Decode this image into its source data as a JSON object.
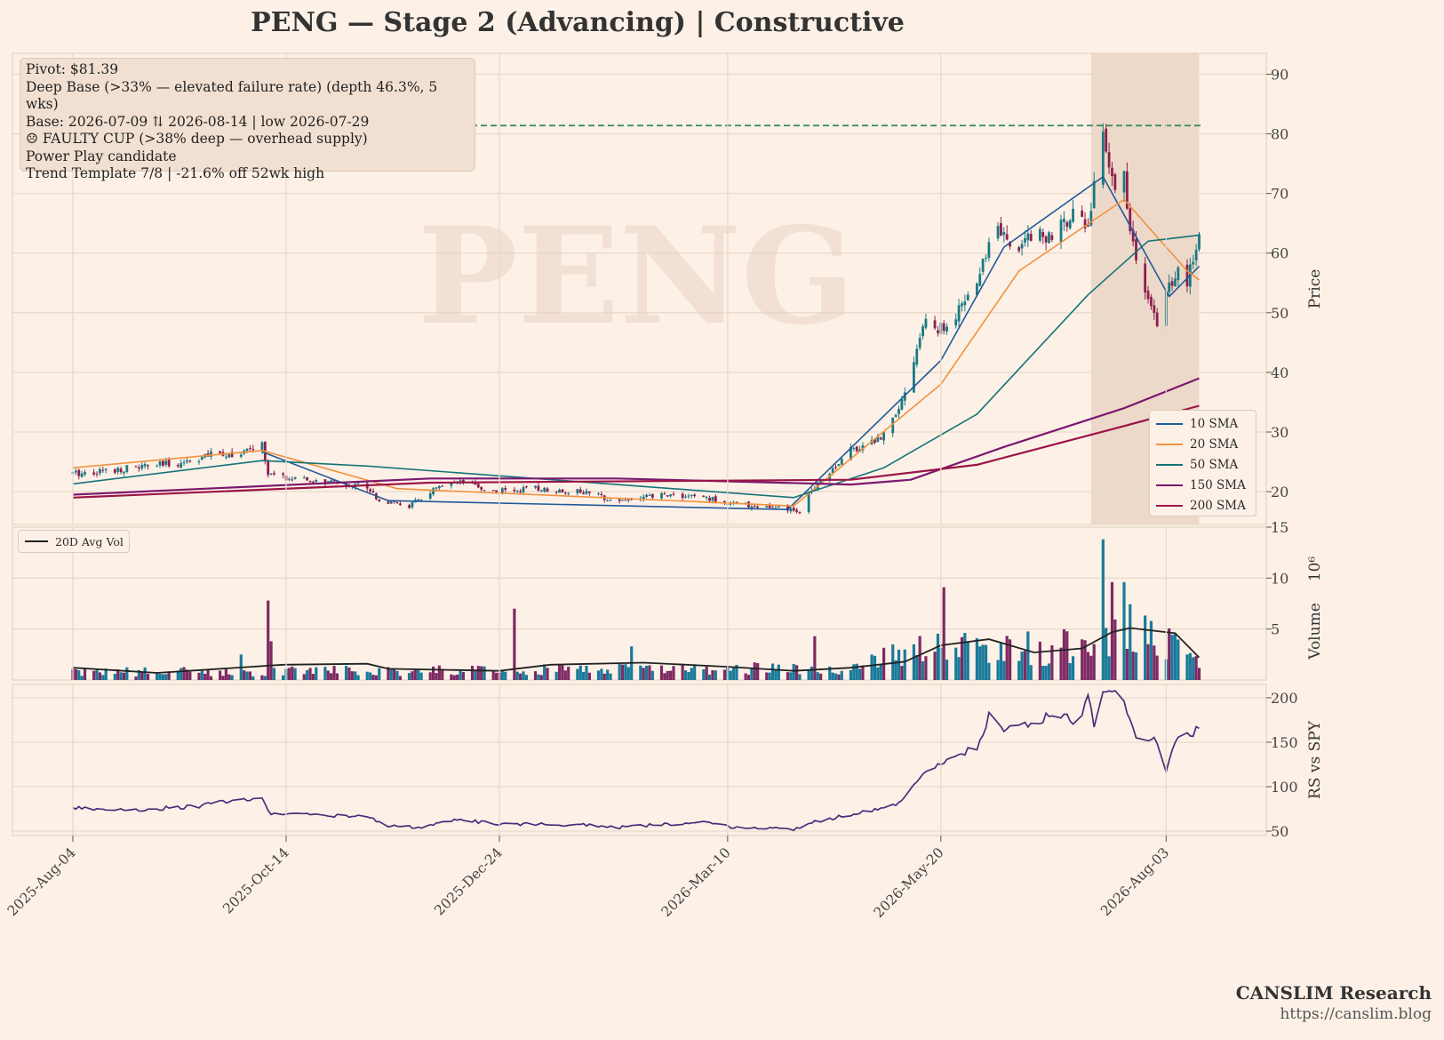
{
  "title": "PENG  —  Stage 2 (Advancing)  |  Constructive",
  "watermark": "PENG",
  "info_lines": [
    "Pivot: $81.39",
    "Deep Base (>33% — elevated failure rate)  (depth 46.3%, 5 wks)",
    "Base: 2026-07-09 ⇅ 2026-08-14  |  low 2026-07-29",
    "☹ FAULTY CUP (>38% deep — overhead supply)",
    "Power Play candidate",
    "Trend Template 7/8  |  -21.6% off 52wk high"
  ],
  "brand": {
    "name": "CANSLIM Research",
    "url": "https://canslim.blog"
  },
  "colors": {
    "bg": "#fdf1e7",
    "grid": "#e8d9cb",
    "up": "#1a7a82",
    "down": "#8e1e4c",
    "sma10": "#1f5a99",
    "sma20": "#f2913d",
    "sma50": "#157378",
    "sma150": "#7b1870",
    "sma200": "#9b1447",
    "pivot": "#2e8b57",
    "avgvol": "#222222",
    "rs": "#4a2c7a",
    "vol_up": "#1a7a9a",
    "vol_down": "#7e2a63",
    "band": "#e9d3c2"
  },
  "chart_data": [
    {
      "type": "candlestick",
      "panel": "price",
      "ylabel": "Price",
      "ylim": [
        14.5,
        93.5
      ],
      "yticks": [
        20,
        30,
        40,
        50,
        60,
        70,
        80,
        90
      ],
      "x_start": "2025-08-04",
      "x_end": "2026-08-14",
      "xticks": [
        "2025-Aug-04",
        "2025-Oct-14",
        "2025-Dec-24",
        "2026-Mar-10",
        "2026-May-20",
        "2026-Aug-03"
      ],
      "pivot": 81.39,
      "base_band": [
        "2026-07-09",
        "2026-08-14"
      ],
      "close_anchors": [
        [
          "2025-08-04",
          23.0
        ],
        [
          "2025-08-20",
          23.8
        ],
        [
          "2025-09-08",
          24.8
        ],
        [
          "2025-09-22",
          26.5
        ],
        [
          "2025-09-29",
          26.2
        ],
        [
          "2025-10-06",
          28.0
        ],
        [
          "2025-10-08",
          22.8
        ],
        [
          "2025-10-20",
          21.8
        ],
        [
          "2025-11-10",
          21.0
        ],
        [
          "2025-11-14",
          18.5
        ],
        [
          "2025-11-24",
          17.6
        ],
        [
          "2025-12-03",
          20.5
        ],
        [
          "2025-12-12",
          21.5
        ],
        [
          "2025-12-22",
          20.0
        ],
        [
          "2026-01-05",
          20.5
        ],
        [
          "2026-01-20",
          20.0
        ],
        [
          "2026-02-02",
          18.5
        ],
        [
          "2026-02-18",
          19.5
        ],
        [
          "2026-03-02",
          19.0
        ],
        [
          "2026-03-12",
          18.0
        ],
        [
          "2026-03-30",
          17.0
        ],
        [
          "2026-04-03",
          16.5
        ],
        [
          "2026-04-07",
          20.5
        ],
        [
          "2026-04-20",
          27.0
        ],
        [
          "2026-04-30",
          29.0
        ],
        [
          "2026-05-08",
          36.5
        ],
        [
          "2026-05-14",
          48.0
        ],
        [
          "2026-05-22",
          47.0
        ],
        [
          "2026-06-01",
          55.0
        ],
        [
          "2026-06-08",
          66.0
        ],
        [
          "2026-06-12",
          60.0
        ],
        [
          "2026-06-20",
          64.0
        ],
        [
          "2026-06-27",
          62.0
        ],
        [
          "2026-07-03",
          68.0
        ],
        [
          "2026-07-08",
          64.0
        ],
        [
          "2026-07-12",
          81.0
        ],
        [
          "2026-07-16",
          72.0
        ],
        [
          "2026-07-20",
          73.0
        ],
        [
          "2026-07-22",
          63.0
        ],
        [
          "2026-07-28",
          52.0
        ],
        [
          "2026-08-01",
          46.0
        ],
        [
          "2026-08-03",
          53.0
        ],
        [
          "2026-08-06",
          57.0
        ],
        [
          "2026-08-10",
          55.0
        ],
        [
          "2026-08-14",
          63.0
        ]
      ],
      "sma_series": [
        {
          "name": "10 SMA",
          "points": [
            [
              "2025-10-06",
              26.7
            ],
            [
              "2025-11-17",
              18.5
            ],
            [
              "2026-03-30",
              17.0
            ],
            [
              "2026-05-20",
              42.0
            ],
            [
              "2026-06-10",
              61.0
            ],
            [
              "2026-07-13",
              72.8
            ],
            [
              "2026-08-04",
              52.7
            ],
            [
              "2026-08-14",
              57.8
            ]
          ]
        },
        {
          "name": "20 SMA",
          "points": [
            [
              "2025-08-04",
              24.0
            ],
            [
              "2025-10-06",
              26.9
            ],
            [
              "2025-11-20",
              20.5
            ],
            [
              "2026-04-01",
              17.6
            ],
            [
              "2026-05-20",
              38.0
            ],
            [
              "2026-06-15",
              57.0
            ],
            [
              "2026-07-20",
              69.0
            ],
            [
              "2026-08-10",
              57.0
            ],
            [
              "2026-08-14",
              55.5
            ]
          ]
        },
        {
          "name": "50 SMA",
          "points": [
            [
              "2025-08-04",
              21.3
            ],
            [
              "2025-10-06",
              25.2
            ],
            [
              "2025-11-10",
              24.3
            ],
            [
              "2026-04-01",
              19.0
            ],
            [
              "2026-05-01",
              24.0
            ],
            [
              "2026-06-01",
              33.0
            ],
            [
              "2026-07-08",
              53.0
            ],
            [
              "2026-07-28",
              62.0
            ],
            [
              "2026-08-14",
              63.0
            ]
          ]
        },
        {
          "name": "150 SMA",
          "points": [
            [
              "2025-08-04",
              19.5
            ],
            [
              "2025-12-01",
              22.2
            ],
            [
              "2026-02-01",
              22.2
            ],
            [
              "2026-04-20",
              21.2
            ],
            [
              "2026-05-10",
              22.0
            ],
            [
              "2026-06-10",
              27.5
            ],
            [
              "2026-07-20",
              34.0
            ],
            [
              "2026-08-14",
              39.0
            ]
          ]
        },
        {
          "name": "200 SMA",
          "points": [
            [
              "2025-08-04",
              19.0
            ],
            [
              "2025-12-01",
              21.5
            ],
            [
              "2026-04-20",
              22.0
            ],
            [
              "2026-06-01",
              24.5
            ],
            [
              "2026-07-20",
              31.0
            ],
            [
              "2026-08-14",
              34.4
            ]
          ]
        }
      ],
      "legend": [
        "10 SMA",
        "20 SMA",
        "50 SMA",
        "150 SMA",
        "200 SMA"
      ],
      "legend_position": "lower-right"
    },
    {
      "type": "bar",
      "panel": "volume",
      "ylabel": "Volume",
      "yunit": "10⁶",
      "ylim": [
        0,
        15
      ],
      "yticks": [
        5,
        10,
        15
      ],
      "baseline_anchors": [
        [
          "2025-08-04",
          0.8
        ],
        [
          "2026-04-15",
          1.2
        ],
        [
          "2026-05-10",
          3.0
        ],
        [
          "2026-07-08",
          3.5
        ],
        [
          "2026-07-25",
          6.0
        ],
        [
          "2026-08-14",
          1.5
        ]
      ],
      "spikes": [
        [
          "2025-09-29",
          2.5
        ],
        [
          "2025-10-08",
          7.8
        ],
        [
          "2025-10-09",
          3.8
        ],
        [
          "2025-12-29",
          7.0
        ],
        [
          "2026-02-06",
          3.3
        ],
        [
          "2026-04-08",
          4.3
        ],
        [
          "2026-05-10",
          4.8
        ],
        [
          "2026-05-21",
          9.1
        ],
        [
          "2026-07-13",
          13.8
        ],
        [
          "2026-07-16",
          9.6
        ],
        [
          "2026-07-20",
          9.6
        ]
      ],
      "avg_line": {
        "name": "20D Avg Vol",
        "points": [
          [
            "2025-08-04",
            1.2
          ],
          [
            "2025-09-01",
            0.7
          ],
          [
            "2025-10-13",
            1.5
          ],
          [
            "2025-11-10",
            1.6
          ],
          [
            "2025-11-17",
            1.1
          ],
          [
            "2025-12-24",
            0.9
          ],
          [
            "2026-01-10",
            1.5
          ],
          [
            "2026-02-10",
            1.7
          ],
          [
            "2026-03-10",
            1.3
          ],
          [
            "2026-04-01",
            0.9
          ],
          [
            "2026-04-20",
            1.2
          ],
          [
            "2026-05-08",
            1.8
          ],
          [
            "2026-05-20",
            3.4
          ],
          [
            "2026-06-05",
            4.0
          ],
          [
            "2026-06-20",
            2.7
          ],
          [
            "2026-07-06",
            3.1
          ],
          [
            "2026-07-16",
            4.7
          ],
          [
            "2026-07-22",
            5.1
          ],
          [
            "2026-08-06",
            4.6
          ],
          [
            "2026-08-14",
            2.2
          ]
        ]
      },
      "legend": [
        "20D Avg Vol"
      ],
      "legend_position": "top-left"
    },
    {
      "type": "line",
      "panel": "rs",
      "ylabel": "RS vs SPY",
      "ylim": [
        45,
        215
      ],
      "yticks": [
        50,
        100,
        150,
        200
      ],
      "series": [
        {
          "points": [
            [
              "2025-08-04",
              76
            ],
            [
              "2025-08-25",
              74
            ],
            [
              "2025-09-15",
              78
            ],
            [
              "2025-09-22",
              83
            ],
            [
              "2025-10-06",
              86
            ],
            [
              "2025-10-09",
              70
            ],
            [
              "2025-11-10",
              66
            ],
            [
              "2025-11-17",
              56
            ],
            [
              "2025-11-28",
              54
            ],
            [
              "2025-12-10",
              63
            ],
            [
              "2025-12-24",
              58
            ],
            [
              "2026-01-05",
              58
            ],
            [
              "2026-01-20",
              57
            ],
            [
              "2026-02-01",
              54
            ],
            [
              "2026-02-18",
              58
            ],
            [
              "2026-03-01",
              60
            ],
            [
              "2026-03-10",
              55
            ],
            [
              "2026-04-01",
              52
            ],
            [
              "2026-04-07",
              60
            ],
            [
              "2026-04-25",
              72
            ],
            [
              "2026-05-05",
              80
            ],
            [
              "2026-05-15",
              115
            ],
            [
              "2026-05-20",
              125
            ],
            [
              "2026-06-01",
              145
            ],
            [
              "2026-06-06",
              187
            ],
            [
              "2026-06-10",
              165
            ],
            [
              "2026-06-20",
              170
            ],
            [
              "2026-06-27",
              185
            ],
            [
              "2026-07-05",
              170
            ],
            [
              "2026-07-08",
              200
            ],
            [
              "2026-07-10",
              172
            ],
            [
              "2026-07-13",
              212
            ],
            [
              "2026-07-20",
              195
            ],
            [
              "2026-07-25",
              145
            ],
            [
              "2026-07-30",
              155
            ],
            [
              "2026-08-03",
              120
            ],
            [
              "2026-08-06",
              150
            ],
            [
              "2026-08-14",
              165
            ]
          ]
        }
      ]
    }
  ]
}
